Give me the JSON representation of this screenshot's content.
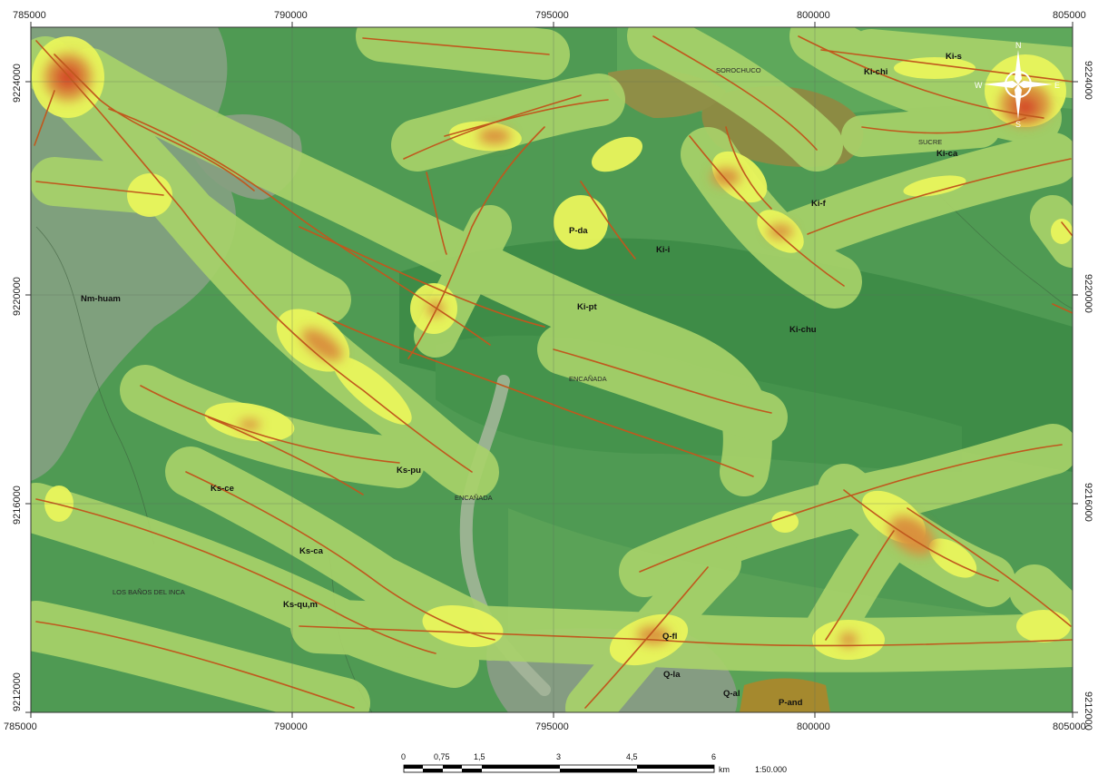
{
  "map": {
    "top_axis": [
      "785000",
      "790000",
      "795000",
      "800000",
      "805000"
    ],
    "bottom_axis": [
      "785000",
      "790000",
      "795000",
      "800000",
      "805000"
    ],
    "left_axis": [
      "9224000",
      "9220000",
      "9216000",
      "9212000"
    ],
    "right_axis": [
      "9224000",
      "9220000",
      "9216000",
      "9212000"
    ],
    "geology_units": [
      "Ki-s",
      "Ki-chi",
      "Ki-ca",
      "Ki-f",
      "P-da",
      "Ki-i",
      "Ki-pt",
      "Ki-chu",
      "Nm-huam",
      "Ks-pu",
      "Ks-ce",
      "Ks-ca",
      "Ks-qu,m",
      "Q-fl",
      "Q-la",
      "Q-al",
      "P-and"
    ],
    "place_names": [
      "SOROCHUCO",
      "SUCRE",
      "ENCAÑADA",
      "ENCAÑADA",
      "LOS BAÑOS DEL INCA"
    ],
    "colors": {
      "base_green": "#4f9a53",
      "dark_green": "#3d8a46",
      "grey_unit": "#7fa07d",
      "buffer_light": "#a9d36a",
      "buffer_yellow": "#e9f55c",
      "hotspot_orange": "#d9913c",
      "hotspot_red": "#d44d2a",
      "fault_line": "#c0581d"
    }
  },
  "compass": {
    "n": "N",
    "s": "S",
    "e": "E",
    "w": "W"
  },
  "scale_bar": {
    "ticks": [
      "0",
      "0,75",
      "1,5",
      "3",
      "4,5",
      "6"
    ],
    "unit": "km",
    "ratio": "1:50.000"
  }
}
